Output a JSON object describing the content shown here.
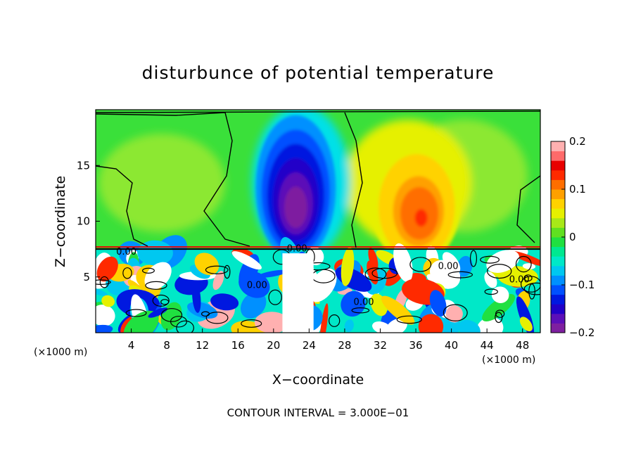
{
  "chart_data": {
    "type": "heatmap",
    "title": "disturbunce of potential temperature",
    "xlabel": "X−coordinate",
    "ylabel": "Z−coordinate",
    "x_unit": "(×1000 m)",
    "z_unit": "(×1000 m)",
    "xlim": [
      0,
      50
    ],
    "ylim": [
      0,
      20
    ],
    "x_ticks": [
      4,
      8,
      12,
      16,
      20,
      24,
      28,
      32,
      36,
      40,
      44,
      48
    ],
    "y_ticks": [
      5,
      10,
      15
    ],
    "colorbar": {
      "range": [
        -0.2,
        0.2
      ],
      "ticks": [
        -0.2,
        -0.1,
        0,
        0.1,
        0.2
      ],
      "tick_labels": [
        "−0.2",
        "−0.1",
        "0",
        "0.1",
        "0.2"
      ],
      "colors": [
        "#7e1fa0",
        "#5b0fb8",
        "#2000c8",
        "#0018e0",
        "#0050ff",
        "#0090ff",
        "#00c8f0",
        "#00e8c8",
        "#00e890",
        "#20e040",
        "#60e020",
        "#a8e818",
        "#e6f000",
        "#ffd200",
        "#ffa000",
        "#ff6e00",
        "#ff2a00",
        "#e80000",
        "#ff6a6a",
        "#ffb0b0"
      ]
    },
    "contour_labels": [
      "0.00",
      "0.00",
      "0.00",
      "0.00",
      "0.00",
      "0.00"
    ],
    "features": [
      {
        "kind": "cold_anomaly",
        "x_center": 22.5,
        "z_center": 13,
        "x_halfwidth": 4.5,
        "z_halfheight": 6.5,
        "min_value": -0.2
      },
      {
        "kind": "warm_anomaly",
        "x_center": 36,
        "z_center": 11.5,
        "x_halfwidth": 5,
        "z_halfheight": 5.5,
        "max_value": 0.13
      },
      {
        "kind": "boundary_layer",
        "z_top": 7.5
      }
    ],
    "footer": "CONTOUR INTERVAL = 3.000E−01"
  }
}
